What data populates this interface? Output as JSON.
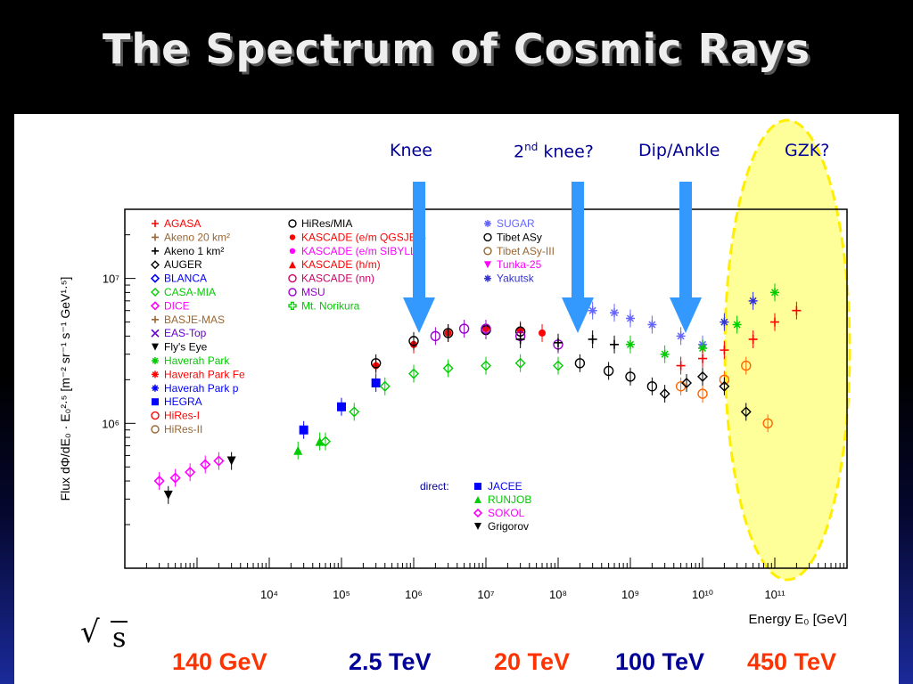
{
  "slide": {
    "title": "The Spectrum of Cosmic Rays",
    "sqrt_symbol": "√",
    "sqrt_var": "s",
    "energies": [
      {
        "label": "140 GeV",
        "color": "#ff3300"
      },
      {
        "label": "2.5 TeV",
        "color": "#000099"
      },
      {
        "label": "20 TeV",
        "color": "#ff3300"
      },
      {
        "label": "100 TeV",
        "color": "#000099"
      },
      {
        "label": "450 TeV",
        "color": "#ff3300"
      }
    ],
    "annotations": {
      "knee": "Knee",
      "second_knee_num": "2",
      "second_knee_sup": "nd",
      "second_knee_rest": " knee?",
      "ankle": "Dip/Ankle",
      "gzk": "GZK?"
    },
    "colors": {
      "arrow": "#3399ff",
      "ellipse_fill": "#ffff99",
      "ellipse_stroke": "#ffee00",
      "annotation": "#000099"
    }
  },
  "chart_data": {
    "type": "scatter",
    "title": "",
    "xlabel": "Energy E₀ [GeV]",
    "ylabel": "Flux dΦ/dE₀ · E₀²·⁵ [m⁻² sr⁻¹ s⁻¹ GeV¹·⁵]",
    "x_scale": "log",
    "y_scale": "log",
    "xlim": [
      100,
      1000000000000.0
    ],
    "ylim": [
      100000,
      30000000
    ],
    "x_tick_labels": [
      "10⁴",
      "10⁵",
      "10⁶",
      "10⁷",
      "10⁸",
      "10⁹",
      "10¹⁰",
      "10¹¹"
    ],
    "x_tick_values": [
      10000,
      100000,
      1000000,
      10000000,
      100000000,
      1000000000,
      10000000000,
      100000000000
    ],
    "y_tick_labels": [
      "10⁶",
      "10⁷"
    ],
    "y_tick_values": [
      1000000,
      10000000
    ],
    "legend_placement": "top-left",
    "legend_columns": [
      [
        {
          "name": "AGASA",
          "color": "#ff0000",
          "marker": "+"
        },
        {
          "name": "Akeno 20 km²",
          "color": "#996633",
          "marker": "+"
        },
        {
          "name": "Akeno 1 km²",
          "color": "#000000",
          "marker": "+"
        },
        {
          "name": "AUGER",
          "color": "#000000",
          "marker": "x-diamond"
        },
        {
          "name": "BLANCA",
          "color": "#0000ff",
          "marker": "diamond"
        },
        {
          "name": "CASA-MIA",
          "color": "#00cc00",
          "marker": "x-diamond"
        },
        {
          "name": "DICE",
          "color": "#ff00ff",
          "marker": "diamond"
        },
        {
          "name": "BASJE-MAS",
          "color": "#996633",
          "marker": "+"
        },
        {
          "name": "EAS-Top",
          "color": "#6600cc",
          "marker": "x"
        },
        {
          "name": "Fly's Eye",
          "color": "#000000",
          "marker": "tri-down"
        },
        {
          "name": "Haverah Park",
          "color": "#00cc00",
          "marker": "star"
        },
        {
          "name": "Haverah Park Fe",
          "color": "#ff0000",
          "marker": "star"
        },
        {
          "name": "Haverah Park p",
          "color": "#0000ff",
          "marker": "star"
        },
        {
          "name": "HEGRA",
          "color": "#0000ff",
          "marker": "square"
        },
        {
          "name": "HiRes-I",
          "color": "#ff0000",
          "marker": "circle"
        },
        {
          "name": "HiRes-II",
          "color": "#996633",
          "marker": "circle"
        }
      ],
      [
        {
          "name": "HiRes/MIA",
          "color": "#000000",
          "marker": "circle"
        },
        {
          "name": "KASCADE (e/m QGSJET)",
          "color": "#ff0000",
          "marker": "dot"
        },
        {
          "name": "KASCADE (e/m SIBYLL)",
          "color": "#ff00ff",
          "marker": "dot"
        },
        {
          "name": "KASCADE (h/m)",
          "color": "#ff0000",
          "marker": "triangle"
        },
        {
          "name": "KASCADE (nn)",
          "color": "#cc0066",
          "marker": "circle"
        },
        {
          "name": "MSU",
          "color": "#9900cc",
          "marker": "circle"
        },
        {
          "name": "Mt. Norikura",
          "color": "#00cc00",
          "marker": "plus-open"
        }
      ],
      [
        {
          "name": "SUGAR",
          "color": "#6666ff",
          "marker": "star"
        },
        {
          "name": "Tibet ASy",
          "color": "#000000",
          "marker": "circle"
        },
        {
          "name": "Tibet ASy-III",
          "color": "#996633",
          "marker": "circle"
        },
        {
          "name": "Tunka-25",
          "color": "#ff00ff",
          "marker": "tri-down"
        },
        {
          "name": "Yakutsk",
          "color": "#3333cc",
          "marker": "star"
        }
      ]
    ],
    "direct_label": "direct:",
    "direct_legend": [
      {
        "name": "JACEE",
        "color": "#0000ff",
        "marker": "square"
      },
      {
        "name": "RUNJOB",
        "color": "#00cc00",
        "marker": "triangle"
      },
      {
        "name": "SOKOL",
        "color": "#ff00ff",
        "marker": "diamond"
      },
      {
        "name": "Grigorov",
        "color": "#000000",
        "marker": "tri-down"
      }
    ],
    "series": [
      {
        "name": "SOKOL",
        "color": "#ff00ff",
        "marker": "diamond",
        "x": [
          300,
          500,
          800,
          1300,
          2000
        ],
        "y": [
          400000,
          420000,
          460000,
          520000,
          550000
        ]
      },
      {
        "name": "Grigorov",
        "color": "#000000",
        "marker": "tri-down",
        "x": [
          400,
          3000
        ],
        "y": [
          320000,
          550000
        ]
      },
      {
        "name": "JACEE",
        "color": "#0000ff",
        "marker": "square",
        "x": [
          30000,
          100000,
          300000
        ],
        "y": [
          900000,
          1300000,
          1900000
        ]
      },
      {
        "name": "RUNJOB",
        "color": "#00cc00",
        "marker": "triangle",
        "x": [
          25000,
          50000
        ],
        "y": [
          650000,
          750000
        ]
      },
      {
        "name": "CASA-MIA",
        "color": "#00cc00",
        "marker": "x-diamond",
        "x": [
          60000,
          150000,
          400000,
          1000000,
          3000000,
          10000000,
          30000000,
          100000000
        ],
        "y": [
          750000,
          1200000,
          1800000,
          2200000,
          2400000,
          2500000,
          2600000,
          2500000
        ]
      },
      {
        "name": "KASCADE (e/m QGSJET)",
        "color": "#ff0000",
        "marker": "dot",
        "x": [
          300000,
          1000000,
          3000000,
          10000000,
          30000000,
          60000000
        ],
        "y": [
          2500000,
          3500000,
          4200000,
          4500000,
          4400000,
          4200000
        ]
      },
      {
        "name": "Tibet ASy",
        "color": "#000000",
        "marker": "circle",
        "x": [
          300000,
          1000000,
          3000000,
          10000000,
          30000000
        ],
        "y": [
          2600000,
          3700000,
          4200000,
          4400000,
          4300000
        ]
      },
      {
        "name": "MSU",
        "color": "#9900cc",
        "marker": "circle",
        "x": [
          2000000,
          5000000,
          10000000,
          30000000,
          100000000
        ],
        "y": [
          4000000,
          4500000,
          4500000,
          4000000,
          3500000
        ]
      },
      {
        "name": "HiRes/MIA",
        "color": "#000000",
        "marker": "circle",
        "x": [
          200000000,
          500000000,
          1000000000,
          2000000000
        ],
        "y": [
          2600000,
          2300000,
          2100000,
          1800000
        ]
      },
      {
        "name": "SUGAR",
        "color": "#6666ff",
        "marker": "star",
        "x": [
          300000000,
          600000000,
          1000000000,
          2000000000,
          5000000000,
          10000000000
        ],
        "y": [
          6000000,
          5800000,
          5300000,
          4800000,
          4000000,
          3500000
        ]
      },
      {
        "name": "Akeno 1 km²",
        "color": "#000000",
        "marker": "+",
        "x": [
          30000000,
          100000000,
          300000000,
          600000000
        ],
        "y": [
          3800000,
          3600000,
          3800000,
          3500000
        ]
      },
      {
        "name": "Haverah Park",
        "color": "#00cc00",
        "marker": "star",
        "x": [
          1000000000,
          3000000000,
          10000000000,
          30000000000,
          100000000000
        ],
        "y": [
          3500000,
          3000000,
          3300000,
          4800000,
          8000000
        ]
      },
      {
        "name": "AGASA",
        "color": "#ff0000",
        "marker": "+",
        "x": [
          5000000000,
          10000000000,
          20000000000,
          50000000000,
          100000000000,
          200000000000
        ],
        "y": [
          2500000,
          2800000,
          3200000,
          3800000,
          5000000,
          6000000
        ]
      },
      {
        "name": "HiRes-I",
        "color": "#ff6600",
        "marker": "circle",
        "x": [
          5000000000,
          10000000000,
          20000000000,
          40000000000,
          80000000000
        ],
        "y": [
          1800000,
          1600000,
          2000000,
          2500000,
          1000000
        ]
      },
      {
        "name": "AUGER",
        "color": "#000000",
        "marker": "x-diamond",
        "x": [
          3000000000,
          6000000000,
          10000000000,
          20000000000,
          40000000000
        ],
        "y": [
          1600000,
          1900000,
          2100000,
          1800000,
          1200000
        ]
      },
      {
        "name": "Yakutsk",
        "color": "#3333cc",
        "marker": "star",
        "x": [
          20000000000,
          50000000000
        ],
        "y": [
          5000000,
          7000000
        ]
      }
    ]
  }
}
